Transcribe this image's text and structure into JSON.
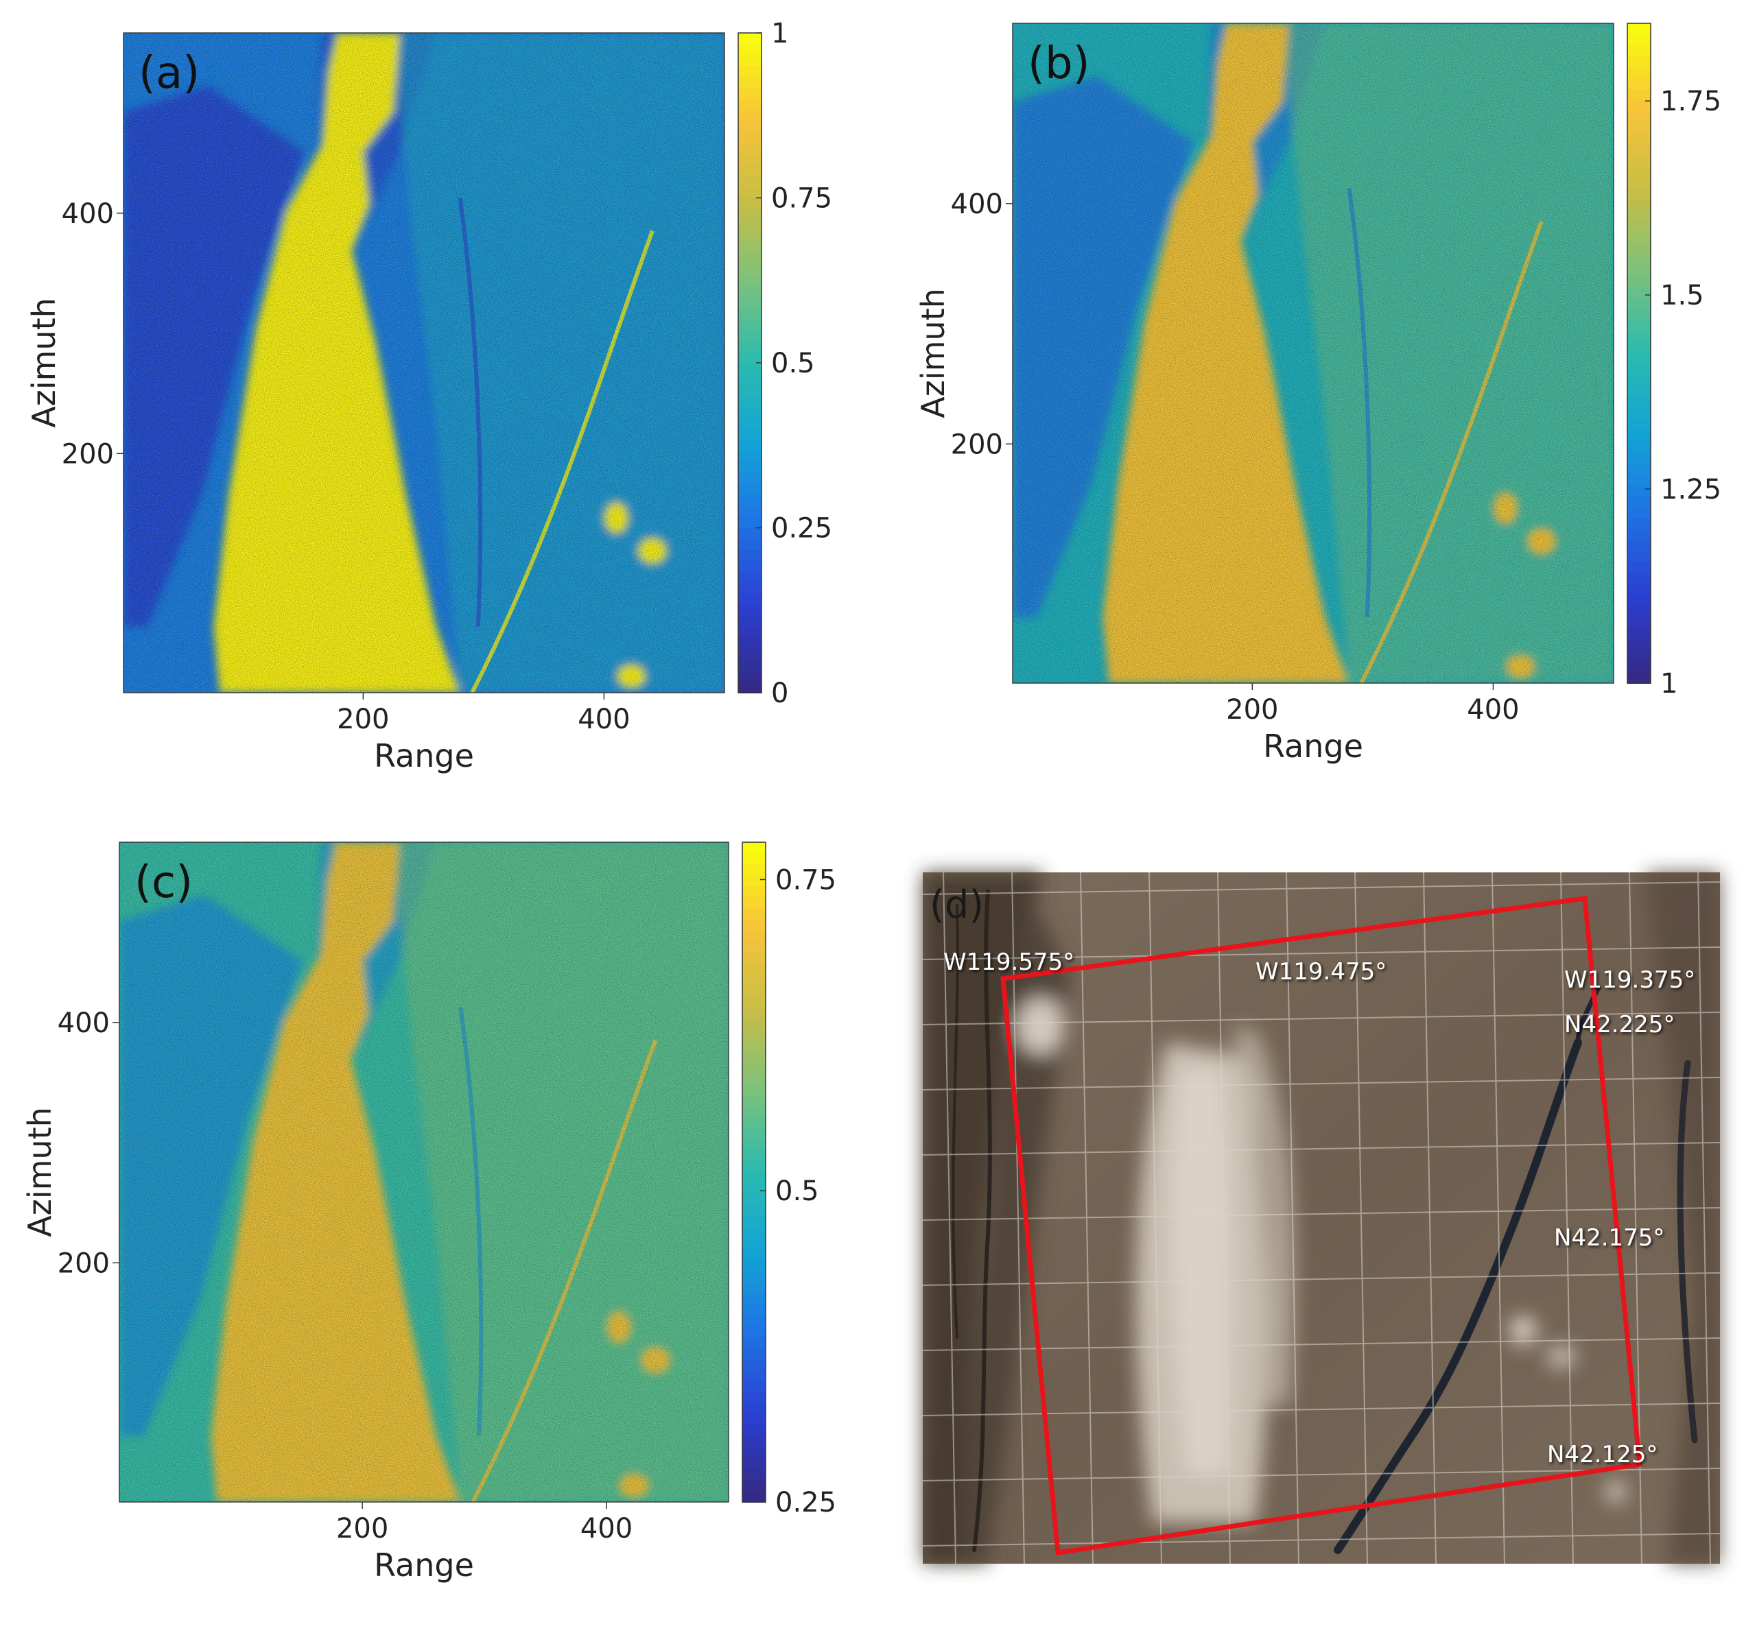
{
  "chart_data": [
    {
      "type": "heatmap",
      "panel_label": "(a)",
      "xlabel": "Range",
      "ylabel": "Azimuth",
      "xlim": [
        1,
        500
      ],
      "ylim": [
        1,
        550
      ],
      "xticks": [
        200,
        400
      ],
      "yticks": [
        200,
        400
      ],
      "colorbar": {
        "range": [
          0,
          1
        ],
        "ticks": [
          0,
          0.25,
          0.5,
          0.75,
          1
        ],
        "tick_labels": [
          "0",
          "0.25",
          "0.5",
          "0.75",
          "1"
        ],
        "colormap": "parula"
      }
    },
    {
      "type": "heatmap",
      "panel_label": "(b)",
      "xlabel": "Range",
      "ylabel": "Azimuth",
      "xlim": [
        1,
        500
      ],
      "ylim": [
        1,
        550
      ],
      "xticks": [
        200,
        400
      ],
      "yticks": [
        200,
        400
      ],
      "colorbar": {
        "range": [
          1,
          1.85
        ],
        "ticks": [
          1,
          1.25,
          1.5,
          1.75
        ],
        "tick_labels": [
          "1",
          "1.25",
          "1.5",
          "1.75"
        ],
        "colormap": "parula"
      }
    },
    {
      "type": "heatmap",
      "panel_label": "(c)",
      "xlabel": "Range",
      "ylabel": "Azimuth",
      "xlim": [
        1,
        500
      ],
      "ylim": [
        1,
        550
      ],
      "xticks": [
        200,
        400
      ],
      "yticks": [
        200,
        400
      ],
      "colorbar": {
        "range": [
          0.25,
          0.78
        ],
        "ticks": [
          0.25,
          0.5,
          0.75
        ],
        "tick_labels": [
          "0.25",
          "0.5",
          "0.75"
        ],
        "colormap": "parula"
      }
    }
  ],
  "map_panel": {
    "panel_label": "(d)",
    "labels": [
      "W119.575°",
      "W119.475°",
      "W119.375°",
      "N42.225°",
      "N42.175°",
      "N42.125°"
    ],
    "box_color": "#e8141c"
  },
  "colors": {
    "parula": [
      "#352a87",
      "#2a3fd1",
      "#1f72e4",
      "#13a3d6",
      "#2bbbb0",
      "#7cc27c",
      "#c8bd45",
      "#f7c43a",
      "#f9fb0e"
    ]
  }
}
